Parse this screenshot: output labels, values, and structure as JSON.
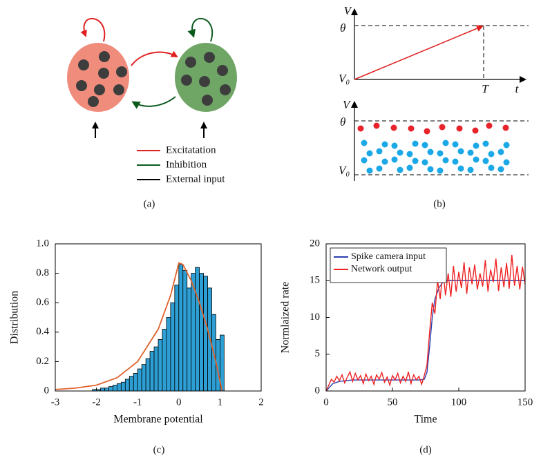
{
  "figure": {
    "panel_labels": [
      "(a)",
      "(b)",
      "(c)",
      "(d)"
    ],
    "legend": [
      "Excitatation",
      "Inhibition",
      "External input"
    ],
    "b_labels": {
      "v_top": "V",
      "theta_top": "θ",
      "v0_top": "V₀",
      "T": "T",
      "t": "t",
      "v_bottom": "V",
      "theta_bottom": "θ",
      "v0_bottom": "V₀"
    }
  },
  "chart_data": [
    {
      "type": "histogram",
      "xlabel": "Membrane potential",
      "ylabel": "Distribution",
      "bins": [
        -3,
        -2.9,
        -2.8,
        -2.7,
        -2.6,
        -2.5,
        -2.4,
        -2.3,
        -2.2,
        -2.1,
        -2,
        -1.9,
        -1.8,
        -1.7,
        -1.6,
        -1.5,
        -1.4,
        -1.3,
        -1.2,
        -1.1,
        -1,
        -0.9,
        -0.8,
        -0.7,
        -0.6,
        -0.5,
        -0.4,
        -0.3,
        -0.2,
        -0.1,
        0,
        0.1,
        0.2,
        0.3,
        0.4,
        0.5,
        0.6,
        0.7,
        0.8,
        0.9,
        1,
        1.1
      ],
      "counts": [
        0,
        0,
        0,
        0,
        0,
        0,
        0,
        0,
        0,
        0.01,
        0.01,
        0.02,
        0.02,
        0.03,
        0.04,
        0.05,
        0.06,
        0.08,
        0.1,
        0.12,
        0.15,
        0.18,
        0.22,
        0.27,
        0.3,
        0.35,
        0.42,
        0.5,
        0.6,
        0.72,
        0.86,
        0.82,
        0.7,
        0.8,
        0.84,
        0.8,
        0.78,
        0.7,
        0.52,
        0.35,
        0.38
      ],
      "color": "#2e9fd4",
      "curve": {
        "x": [
          -3,
          -2.5,
          -2,
          -1.5,
          -1,
          -0.5,
          -0.2,
          0,
          0.1,
          0.3,
          0.5,
          0.7,
          0.9,
          1.05
        ],
        "values": [
          0.01,
          0.02,
          0.04,
          0.09,
          0.2,
          0.42,
          0.65,
          0.87,
          0.86,
          0.75,
          0.6,
          0.42,
          0.2,
          0
        ],
        "color": "#e0622a"
      },
      "xlim": [
        -3,
        2
      ],
      "xticks": [
        -3,
        -2,
        -1,
        0,
        1,
        2
      ],
      "ylim": [
        0,
        1
      ],
      "yticks": [
        0,
        0.2,
        0.4,
        0.6,
        0.8,
        {
          "value": 1,
          "label": "1.0"
        }
      ]
    },
    {
      "type": "line",
      "xlabel": "Time",
      "ylabel": "Normlaized rate",
      "xlim": [
        0,
        150
      ],
      "xticks": [
        0,
        50,
        100,
        150
      ],
      "ylim": [
        0,
        20
      ],
      "yticks": [
        0,
        5,
        10,
        15,
        20
      ],
      "legend": "upper left",
      "series": [
        {
          "name": "Spike camera input",
          "color": "#2b3fb0",
          "x": [
            0,
            5,
            10,
            20,
            30,
            40,
            50,
            60,
            70,
            74,
            76,
            78,
            80,
            82,
            85,
            88,
            90,
            95,
            100,
            110,
            120,
            130,
            140,
            150
          ],
          "values": [
            0,
            1,
            1.3,
            1.5,
            1.5,
            1.5,
            1.5,
            1.5,
            1.5,
            1.6,
            2.5,
            6,
            10,
            12.5,
            14,
            14.8,
            15,
            15,
            15,
            15,
            15,
            15,
            15,
            15
          ]
        },
        {
          "name": "Network output",
          "color": "#ee2222",
          "x": [
            0,
            2,
            4,
            6,
            8,
            10,
            12,
            14,
            16,
            18,
            20,
            22,
            24,
            26,
            28,
            30,
            32,
            34,
            36,
            38,
            40,
            42,
            44,
            46,
            48,
            50,
            52,
            54,
            56,
            58,
            60,
            62,
            64,
            66,
            68,
            70,
            72,
            74,
            76,
            78,
            80,
            82,
            84,
            86,
            88,
            90,
            92,
            94,
            96,
            98,
            100,
            102,
            104,
            106,
            108,
            110,
            112,
            114,
            116,
            118,
            120,
            122,
            124,
            126,
            128,
            130,
            132,
            134,
            136,
            138,
            140,
            142,
            144,
            146,
            148,
            150
          ],
          "values": [
            0,
            0.8,
            1.6,
            1.2,
            2.0,
            1.4,
            2.2,
            1.1,
            1.9,
            2.6,
            1.3,
            2.4,
            1.5,
            2.1,
            1.0,
            2.3,
            1.4,
            2.0,
            0.9,
            2.2,
            1.6,
            2.5,
            1.2,
            1.9,
            0.8,
            2.1,
            1.5,
            2.4,
            1.1,
            2.0,
            1.3,
            2.6,
            1.0,
            2.2,
            1.5,
            2.0,
            0.9,
            2.1,
            3.5,
            8,
            12,
            10.5,
            15,
            12.5,
            16.5,
            13,
            16,
            12.8,
            17,
            13.5,
            16.2,
            14,
            17.5,
            13.2,
            16.8,
            14.5,
            17.2,
            13.8,
            16,
            14.2,
            17.8,
            13.5,
            16.5,
            14.8,
            18,
            13.6,
            16.8,
            14.1,
            17.4,
            13.9,
            18.5,
            14.3,
            17,
            13.8,
            16.9,
            14.5
          ]
        }
      ]
    }
  ]
}
